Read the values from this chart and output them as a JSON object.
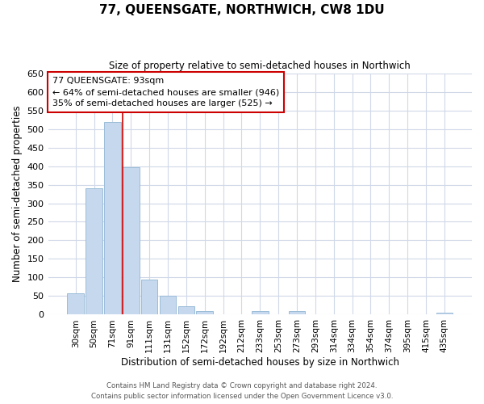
{
  "title": "77, QUEENSGATE, NORTHWICH, CW8 1DU",
  "subtitle": "Size of property relative to semi-detached houses in Northwich",
  "xlabel": "Distribution of semi-detached houses by size in Northwich",
  "ylabel": "Number of semi-detached properties",
  "categories": [
    "30sqm",
    "50sqm",
    "71sqm",
    "91sqm",
    "111sqm",
    "131sqm",
    "152sqm",
    "172sqm",
    "192sqm",
    "212sqm",
    "233sqm",
    "253sqm",
    "273sqm",
    "293sqm",
    "314sqm",
    "334sqm",
    "354sqm",
    "374sqm",
    "395sqm",
    "415sqm",
    "435sqm"
  ],
  "values": [
    57,
    340,
    519,
    397,
    95,
    50,
    22,
    10,
    0,
    0,
    9,
    0,
    9,
    0,
    0,
    0,
    0,
    0,
    0,
    0,
    5
  ],
  "bar_color": "#c5d8ed",
  "bar_edge_color": "#9bbcd8",
  "highlight_bar_index": 3,
  "highlight_line_color": "#cc0000",
  "box_text_line1": "77 QUEENSGATE: 93sqm",
  "box_text_line2": "← 64% of semi-detached houses are smaller (946)",
  "box_text_line3": "35% of semi-detached houses are larger (525) →",
  "box_color": "#cc0000",
  "ylim": [
    0,
    650
  ],
  "yticks": [
    0,
    50,
    100,
    150,
    200,
    250,
    300,
    350,
    400,
    450,
    500,
    550,
    600,
    650
  ],
  "footer_line1": "Contains HM Land Registry data © Crown copyright and database right 2024.",
  "footer_line2": "Contains public sector information licensed under the Open Government Licence v3.0.",
  "background_color": "#ffffff",
  "grid_color": "#d0d8e8"
}
